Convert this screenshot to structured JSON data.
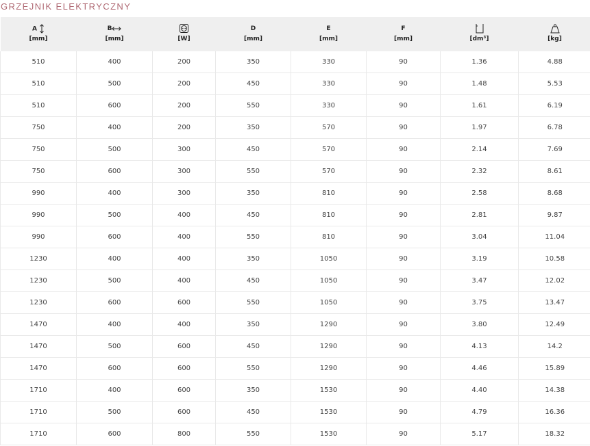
{
  "title": "GRZEJNIK ELEKTRYCZNY",
  "headers": [
    {
      "label": "A",
      "unit": "[mm]",
      "icon": "vertical-arrow-icon"
    },
    {
      "label": "B",
      "unit": "[mm]",
      "icon": "horizontal-arrow-icon"
    },
    {
      "label": "",
      "unit": "[W]",
      "icon": "power-socket-icon"
    },
    {
      "label": "D",
      "unit": "[mm]"
    },
    {
      "label": "E",
      "unit": "[mm]"
    },
    {
      "label": "F",
      "unit": "[mm]"
    },
    {
      "label": "",
      "unit": "[dm³]",
      "icon": "volume-container-icon"
    },
    {
      "label": "",
      "unit": "[kg]",
      "icon": "weight-icon"
    }
  ],
  "rows": [
    [
      "510",
      "400",
      "200",
      "350",
      "330",
      "90",
      "1.36",
      "4.88"
    ],
    [
      "510",
      "500",
      "200",
      "450",
      "330",
      "90",
      "1.48",
      "5.53"
    ],
    [
      "510",
      "600",
      "200",
      "550",
      "330",
      "90",
      "1.61",
      "6.19"
    ],
    [
      "750",
      "400",
      "200",
      "350",
      "570",
      "90",
      "1.97",
      "6.78"
    ],
    [
      "750",
      "500",
      "300",
      "450",
      "570",
      "90",
      "2.14",
      "7.69"
    ],
    [
      "750",
      "600",
      "300",
      "550",
      "570",
      "90",
      "2.32",
      "8.61"
    ],
    [
      "990",
      "400",
      "300",
      "350",
      "810",
      "90",
      "2.58",
      "8.68"
    ],
    [
      "990",
      "500",
      "400",
      "450",
      "810",
      "90",
      "2.81",
      "9.87"
    ],
    [
      "990",
      "600",
      "400",
      "550",
      "810",
      "90",
      "3.04",
      "11.04"
    ],
    [
      "1230",
      "400",
      "400",
      "350",
      "1050",
      "90",
      "3.19",
      "10.58"
    ],
    [
      "1230",
      "500",
      "400",
      "450",
      "1050",
      "90",
      "3.47",
      "12.02"
    ],
    [
      "1230",
      "600",
      "600",
      "550",
      "1050",
      "90",
      "3.75",
      "13.47"
    ],
    [
      "1470",
      "400",
      "400",
      "350",
      "1290",
      "90",
      "3.80",
      "12.49"
    ],
    [
      "1470",
      "500",
      "600",
      "450",
      "1290",
      "90",
      "4.13",
      "14.2"
    ],
    [
      "1470",
      "600",
      "600",
      "550",
      "1290",
      "90",
      "4.46",
      "15.89"
    ],
    [
      "1710",
      "400",
      "600",
      "350",
      "1530",
      "90",
      "4.40",
      "14.38"
    ],
    [
      "1710",
      "500",
      "600",
      "450",
      "1530",
      "90",
      "4.79",
      "16.36"
    ],
    [
      "1710",
      "600",
      "800",
      "550",
      "1530",
      "90",
      "5.17",
      "18.32"
    ]
  ]
}
